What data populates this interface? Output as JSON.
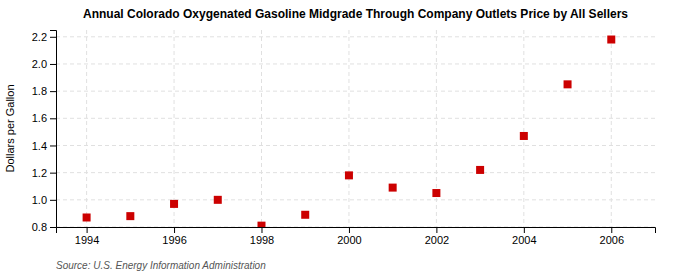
{
  "chart_data": {
    "type": "scatter",
    "title": "Annual Colorado Oxygenated Gasoline Midgrade Through Company Outlets Price by All Sellers",
    "y_label": "Dollars per Gallon",
    "annotations": [
      "Source: U.S. Energy Information Administration"
    ],
    "x": [
      1994,
      1995,
      1996,
      1997,
      1998,
      1999,
      2000,
      2001,
      2002,
      2003,
      2004,
      2005,
      2006
    ],
    "values": [
      0.87,
      0.88,
      0.97,
      1.0,
      0.81,
      0.89,
      1.18,
      1.09,
      1.05,
      1.22,
      1.47,
      1.85,
      2.18
    ],
    "color": "#cc0000",
    "marker": "square",
    "xlim": [
      1993.3,
      2007.0
    ],
    "ylim": [
      0.8,
      2.25
    ],
    "xticks": [
      1994,
      1996,
      1998,
      2000,
      2002,
      2004,
      2006
    ],
    "yticks": [
      0.8,
      {
        "value": 1.0,
        "label": "1.0"
      },
      1.2,
      1.4,
      1.6,
      1.8,
      {
        "value": 2.0,
        "label": "2.0"
      },
      2.2
    ],
    "grid": true
  }
}
